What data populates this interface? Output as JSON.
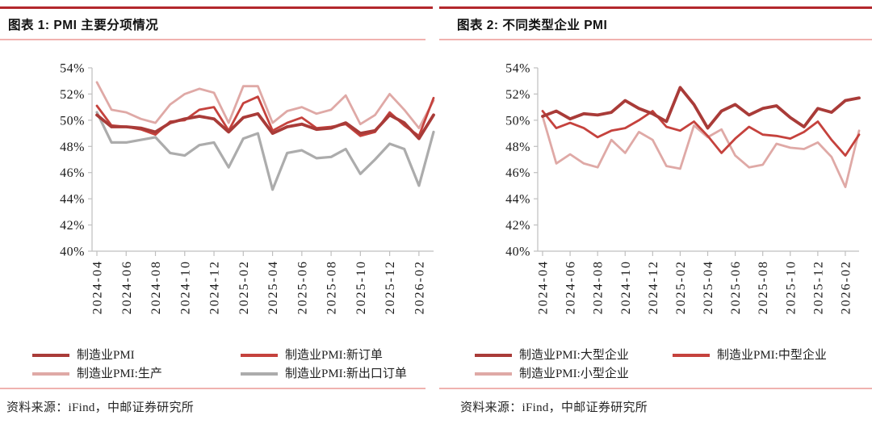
{
  "colors": {
    "rule_top": "#B3282D",
    "rule_light": "#F0B2AF",
    "axis": "#BFBFBF",
    "tick_text": "#1A1A1A",
    "dark_red": "#A93B38",
    "red": "#C5423D",
    "pink": "#DFA9A6",
    "gray": "#ACACAC"
  },
  "panels": [
    {
      "title": "图表 1: PMI 主要分项情况",
      "source": "资料来源：iFind，中邮证券研究所"
    },
    {
      "title": "图表 2: 不同类型企业 PMI",
      "source": "资料来源：iFind，中邮证券研究所"
    }
  ],
  "chart_data": [
    {
      "type": "line",
      "title": "PMI 主要分项情况",
      "x": [
        "2024-04",
        "2024-05",
        "2024-06",
        "2024-07",
        "2024-08",
        "2024-09",
        "2024-10",
        "2024-11",
        "2024-12",
        "2025-01",
        "2025-02",
        "2025-03",
        "2025-04",
        "2025-05",
        "2025-06",
        "2025-07",
        "2025-08",
        "2025-09",
        "2025-10",
        "2025-11",
        "2025-12",
        "2026-01",
        "2026-02",
        "2026-03"
      ],
      "x_tick_labels": [
        "2024-04",
        "2024-06",
        "2024-08",
        "2024-10",
        "2024-12",
        "2025-02",
        "2025-04",
        "2025-06",
        "2025-08",
        "2025-10",
        "2025-12",
        "2026-02"
      ],
      "ylim": [
        40,
        54
      ],
      "y_tick_labels": [
        "40%",
        "42%",
        "44%",
        "46%",
        "48%",
        "50%",
        "52%",
        "54%"
      ],
      "grid": false,
      "legend_position": "bottom",
      "series": [
        {
          "name": "制造业PMI",
          "color": "#A93B38",
          "width": 3.8,
          "values": [
            50.4,
            49.5,
            49.5,
            49.4,
            49.1,
            49.8,
            50.1,
            50.3,
            50.1,
            49.1,
            50.2,
            50.5,
            49.0,
            49.5,
            49.7,
            49.3,
            49.4,
            49.8,
            49.0,
            49.2,
            50.4,
            49.8,
            48.6,
            50.4
          ]
        },
        {
          "name": "制造业PMI:新订单",
          "color": "#C5423D",
          "width": 2.8,
          "values": [
            51.1,
            49.6,
            49.5,
            49.3,
            48.9,
            49.9,
            50.0,
            50.8,
            51.0,
            49.2,
            51.3,
            51.8,
            49.2,
            49.8,
            50.2,
            49.4,
            49.5,
            49.7,
            48.8,
            49.1,
            50.6,
            49.6,
            48.8,
            51.7
          ]
        },
        {
          "name": "制造业PMI:生产",
          "color": "#DFA9A6",
          "width": 2.8,
          "values": [
            52.9,
            50.8,
            50.6,
            50.1,
            49.8,
            51.2,
            52.0,
            52.4,
            52.1,
            49.8,
            52.6,
            52.6,
            49.8,
            50.7,
            51.0,
            50.5,
            50.8,
            51.9,
            49.7,
            50.4,
            52.0,
            50.8,
            49.4,
            51.5
          ]
        },
        {
          "name": "制造业PMI:新出口订单",
          "color": "#ACACAC",
          "width": 3.2,
          "values": [
            50.6,
            48.3,
            48.3,
            48.5,
            48.7,
            47.5,
            47.3,
            48.1,
            48.3,
            46.4,
            48.6,
            49.0,
            44.7,
            47.5,
            47.7,
            47.1,
            47.2,
            47.8,
            45.9,
            47.0,
            48.2,
            47.8,
            45.0,
            49.1
          ]
        }
      ]
    },
    {
      "type": "line",
      "title": "不同类型企业 PMI",
      "x": [
        "2024-04",
        "2024-05",
        "2024-06",
        "2024-07",
        "2024-08",
        "2024-09",
        "2024-10",
        "2024-11",
        "2024-12",
        "2025-01",
        "2025-02",
        "2025-03",
        "2025-04",
        "2025-05",
        "2025-06",
        "2025-07",
        "2025-08",
        "2025-09",
        "2025-10",
        "2025-11",
        "2025-12",
        "2026-01",
        "2026-02",
        "2026-03"
      ],
      "x_tick_labels": [
        "2024-04",
        "2024-06",
        "2024-08",
        "2024-10",
        "2024-12",
        "2025-02",
        "2025-04",
        "2025-06",
        "2025-08",
        "2025-10",
        "2025-12",
        "2026-02"
      ],
      "ylim": [
        40,
        54
      ],
      "y_tick_labels": [
        "40%",
        "42%",
        "44%",
        "46%",
        "48%",
        "50%",
        "52%",
        "54%"
      ],
      "grid": false,
      "legend_position": "bottom",
      "series": [
        {
          "name": "制造业PMI:大型企业",
          "color": "#A93B38",
          "width": 3.8,
          "values": [
            50.3,
            50.7,
            50.1,
            50.5,
            50.4,
            50.6,
            51.5,
            50.9,
            50.5,
            49.9,
            52.5,
            51.2,
            49.4,
            50.7,
            51.2,
            50.4,
            50.9,
            51.1,
            50.2,
            49.5,
            50.9,
            50.6,
            51.5,
            51.7
          ]
        },
        {
          "name": "制造业PMI:中型企业",
          "color": "#C5423D",
          "width": 2.8,
          "values": [
            50.7,
            49.4,
            49.8,
            49.4,
            48.7,
            49.2,
            49.4,
            50.0,
            50.7,
            49.5,
            49.2,
            49.9,
            48.8,
            47.5,
            48.6,
            49.5,
            48.9,
            48.8,
            48.6,
            49.1,
            49.9,
            48.5,
            47.3,
            48.9
          ]
        },
        {
          "name": "制造业PMI:小型企业",
          "color": "#DFA9A6",
          "width": 2.8,
          "values": [
            50.3,
            46.7,
            47.4,
            46.7,
            46.4,
            48.5,
            47.5,
            49.1,
            48.5,
            46.5,
            46.3,
            49.6,
            48.7,
            49.3,
            47.3,
            46.4,
            46.6,
            48.2,
            47.9,
            47.8,
            48.3,
            47.2,
            44.9,
            49.2
          ]
        }
      ]
    }
  ]
}
